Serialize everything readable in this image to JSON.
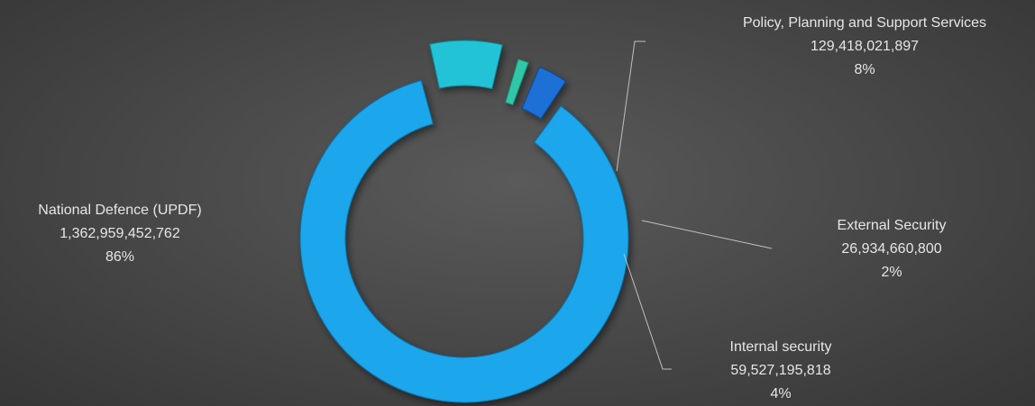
{
  "chart_data": {
    "type": "pie",
    "variant": "exploded-doughnut",
    "categories": [
      "National Defence (UPDF)",
      "Policy, Planning and Support Services",
      "External Security",
      "Internal security"
    ],
    "values": [
      1362959452762,
      129418021897,
      26934660800,
      59527195818
    ],
    "value_labels": [
      "1,362,959,452,762",
      "129,418,021,897",
      "26,934,660,800",
      "59,527,195,818"
    ],
    "percent_labels": [
      "86%",
      "8%",
      "2%",
      "4%"
    ],
    "colors": [
      "#1ba6ec",
      "#22c3d6",
      "#2fc8a8",
      "#1a6fd6"
    ]
  }
}
